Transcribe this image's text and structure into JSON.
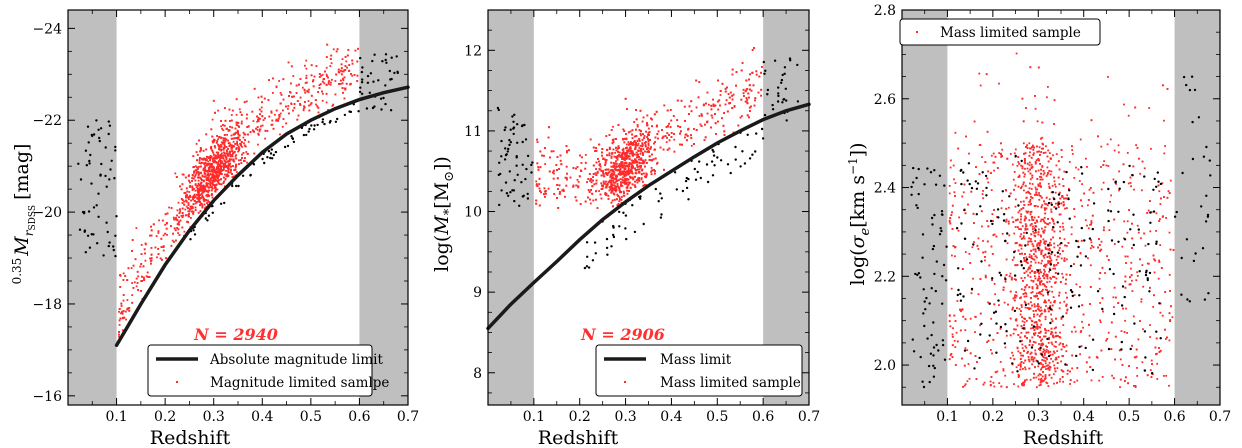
{
  "chart_data": [
    {
      "type": "scatter",
      "xlabel": "Redshift",
      "ylabel": "0.35 M_rSDSS [mag]",
      "ylabel_prefix": "0.35",
      "ylabel_main": "M",
      "ylabel_sub": "r",
      "ylabel_subsub": "SDSS",
      "ylabel_unit": "[mag]",
      "xlim": [
        0.0,
        0.7
      ],
      "ylim": [
        -15.8,
        -24.4
      ],
      "y_inverted": true,
      "xticks": [
        0.1,
        0.2,
        0.3,
        0.4,
        0.5,
        0.6,
        0.7
      ],
      "xtick_labels": [
        "0.1",
        "0.2",
        "0.3",
        "0.4",
        "0.5",
        "0.6",
        "0.7"
      ],
      "yticks": [
        -16,
        -18,
        -20,
        -22,
        -24
      ],
      "ytick_labels": [
        "−16",
        "−18",
        "−20",
        "−22",
        "−24"
      ],
      "shaded_x_ranges": [
        [
          0.0,
          0.1
        ],
        [
          0.6,
          0.7
        ]
      ],
      "annotation": "N = 2940",
      "legend_position": "bottom-right",
      "series": [
        {
          "name": "Absolute magnitude limit",
          "kind": "line",
          "x": [
            0.1,
            0.15,
            0.2,
            0.25,
            0.3,
            0.35,
            0.4,
            0.45,
            0.5,
            0.55,
            0.6,
            0.65,
            0.7
          ],
          "y": [
            -17.1,
            -18.0,
            -18.85,
            -19.6,
            -20.25,
            -20.8,
            -21.3,
            -21.7,
            -22.0,
            -22.25,
            -22.45,
            -22.6,
            -22.72
          ]
        },
        {
          "name": "Magnitude limited samlpe",
          "kind": "points",
          "color": "#ff2a2a",
          "count": 2940
        },
        {
          "name": "",
          "kind": "points",
          "color": "#000000"
        }
      ]
    },
    {
      "type": "scatter",
      "xlabel": "Redshift",
      "ylabel": "log(M*[M⊙])",
      "ylabel_main": "log(",
      "ylabel_m": "M",
      "ylabel_star": "*",
      "ylabel_unit": "[M",
      "ylabel_sun": "⊙",
      "ylabel_close": "])",
      "xlim": [
        0.0,
        0.7
      ],
      "ylim": [
        7.6,
        12.5
      ],
      "xticks": [
        0.1,
        0.2,
        0.3,
        0.4,
        0.5,
        0.6,
        0.7
      ],
      "xtick_labels": [
        "0.1",
        "0.2",
        "0.3",
        "0.4",
        "0.5",
        "0.6",
        "0.7"
      ],
      "yticks": [
        8,
        9,
        10,
        11,
        12
      ],
      "ytick_labels": [
        "8",
        "9",
        "10",
        "11",
        "12"
      ],
      "shaded_x_ranges": [
        [
          0.0,
          0.1
        ],
        [
          0.6,
          0.7
        ]
      ],
      "annotation": "N = 2906",
      "legend_position": "bottom-right",
      "series": [
        {
          "name": "Mass limit",
          "kind": "line",
          "x": [
            0.0,
            0.05,
            0.1,
            0.15,
            0.2,
            0.25,
            0.3,
            0.35,
            0.4,
            0.45,
            0.5,
            0.55,
            0.6,
            0.65,
            0.7
          ],
          "y": [
            8.55,
            8.85,
            9.12,
            9.38,
            9.65,
            9.9,
            10.12,
            10.32,
            10.5,
            10.68,
            10.85,
            11.0,
            11.14,
            11.25,
            11.33
          ]
        },
        {
          "name": "Mass limited sample",
          "kind": "points",
          "color": "#ff2a2a",
          "count": 2906
        },
        {
          "name": "",
          "kind": "points",
          "color": "#000000"
        }
      ]
    },
    {
      "type": "scatter",
      "xlabel": "Redshift",
      "ylabel": "log(σe[km s−1])",
      "ylabel_main": "log(",
      "ylabel_sigma": "σ",
      "ylabel_e": "e",
      "ylabel_unit": "[km s",
      "ylabel_exp": "−1",
      "ylabel_close": "])",
      "xlim": [
        0.0,
        0.7
      ],
      "ylim": [
        1.91,
        2.8
      ],
      "xticks": [
        0.1,
        0.2,
        0.3,
        0.4,
        0.5,
        0.6,
        0.7
      ],
      "xtick_labels": [
        "0.1",
        "0.2",
        "0.3",
        "0.4",
        "0.5",
        "0.6",
        "0.7"
      ],
      "yticks": [
        2.0,
        2.2,
        2.4,
        2.6,
        2.8
      ],
      "ytick_labels": [
        "2.0",
        "2.2",
        "2.4",
        "2.6",
        "2.8"
      ],
      "shaded_x_ranges": [
        [
          0.0,
          0.1
        ],
        [
          0.6,
          0.7
        ]
      ],
      "legend_position": "top-left",
      "series": [
        {
          "name": "Mass limited sample",
          "kind": "points",
          "color": "#ff2a2a"
        },
        {
          "name": "",
          "kind": "points",
          "color": "#000000"
        }
      ]
    }
  ],
  "colors": {
    "shade": "#bfbfbf",
    "sample_points": "#ff2a2a",
    "excluded_points": "#000000",
    "limit_line": "#1a1a1a",
    "annotation": "#ff3030"
  }
}
